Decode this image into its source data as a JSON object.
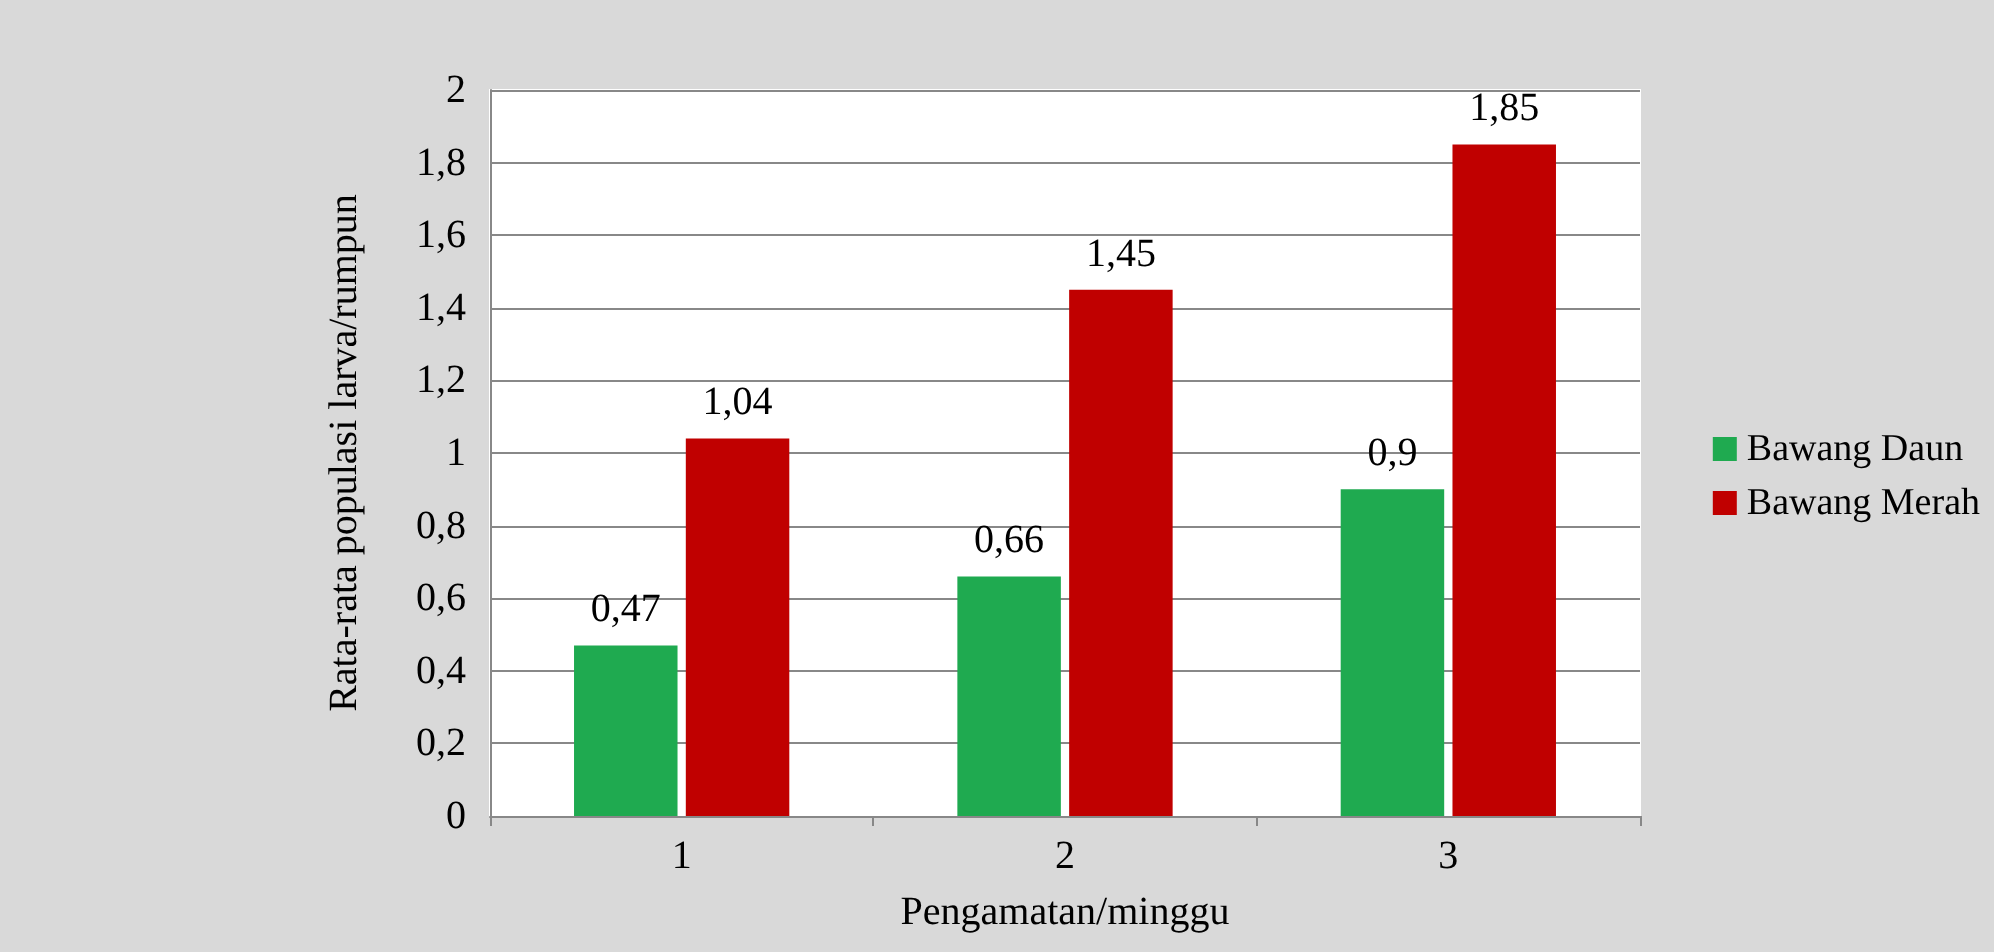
{
  "chart_data": {
    "type": "bar",
    "xlabel": "Pengamatan/minggu",
    "ylabel": "Rata-rata populasi larva/rumpun",
    "categories": [
      "1",
      "2",
      "3"
    ],
    "series": [
      {
        "name": "Bawang Daun",
        "color": "#1faa50",
        "values": [
          0.47,
          0.66,
          0.9
        ],
        "value_labels": [
          "0,47",
          "0,66",
          "0,9"
        ]
      },
      {
        "name": "Bawang Merah",
        "color": "#c00000",
        "values": [
          1.04,
          1.45,
          1.85
        ],
        "value_labels": [
          "1,04",
          "1,45",
          "1,85"
        ]
      }
    ],
    "ylim": [
      0,
      2
    ],
    "yticks": [
      {
        "value": 0,
        "label": "0"
      },
      {
        "value": 0.2,
        "label": "0,2"
      },
      {
        "value": 0.4,
        "label": "0,4"
      },
      {
        "value": 0.6,
        "label": "0,6"
      },
      {
        "value": 0.8,
        "label": "0,8"
      },
      {
        "value": 1,
        "label": "1"
      },
      {
        "value": 1.2,
        "label": "1,2"
      },
      {
        "value": 1.4,
        "label": "1,4"
      },
      {
        "value": 1.6,
        "label": "1,6"
      },
      {
        "value": 1.8,
        "label": "1,8"
      },
      {
        "value": 2,
        "label": "2"
      }
    ],
    "grid": "y",
    "legend": "right"
  }
}
